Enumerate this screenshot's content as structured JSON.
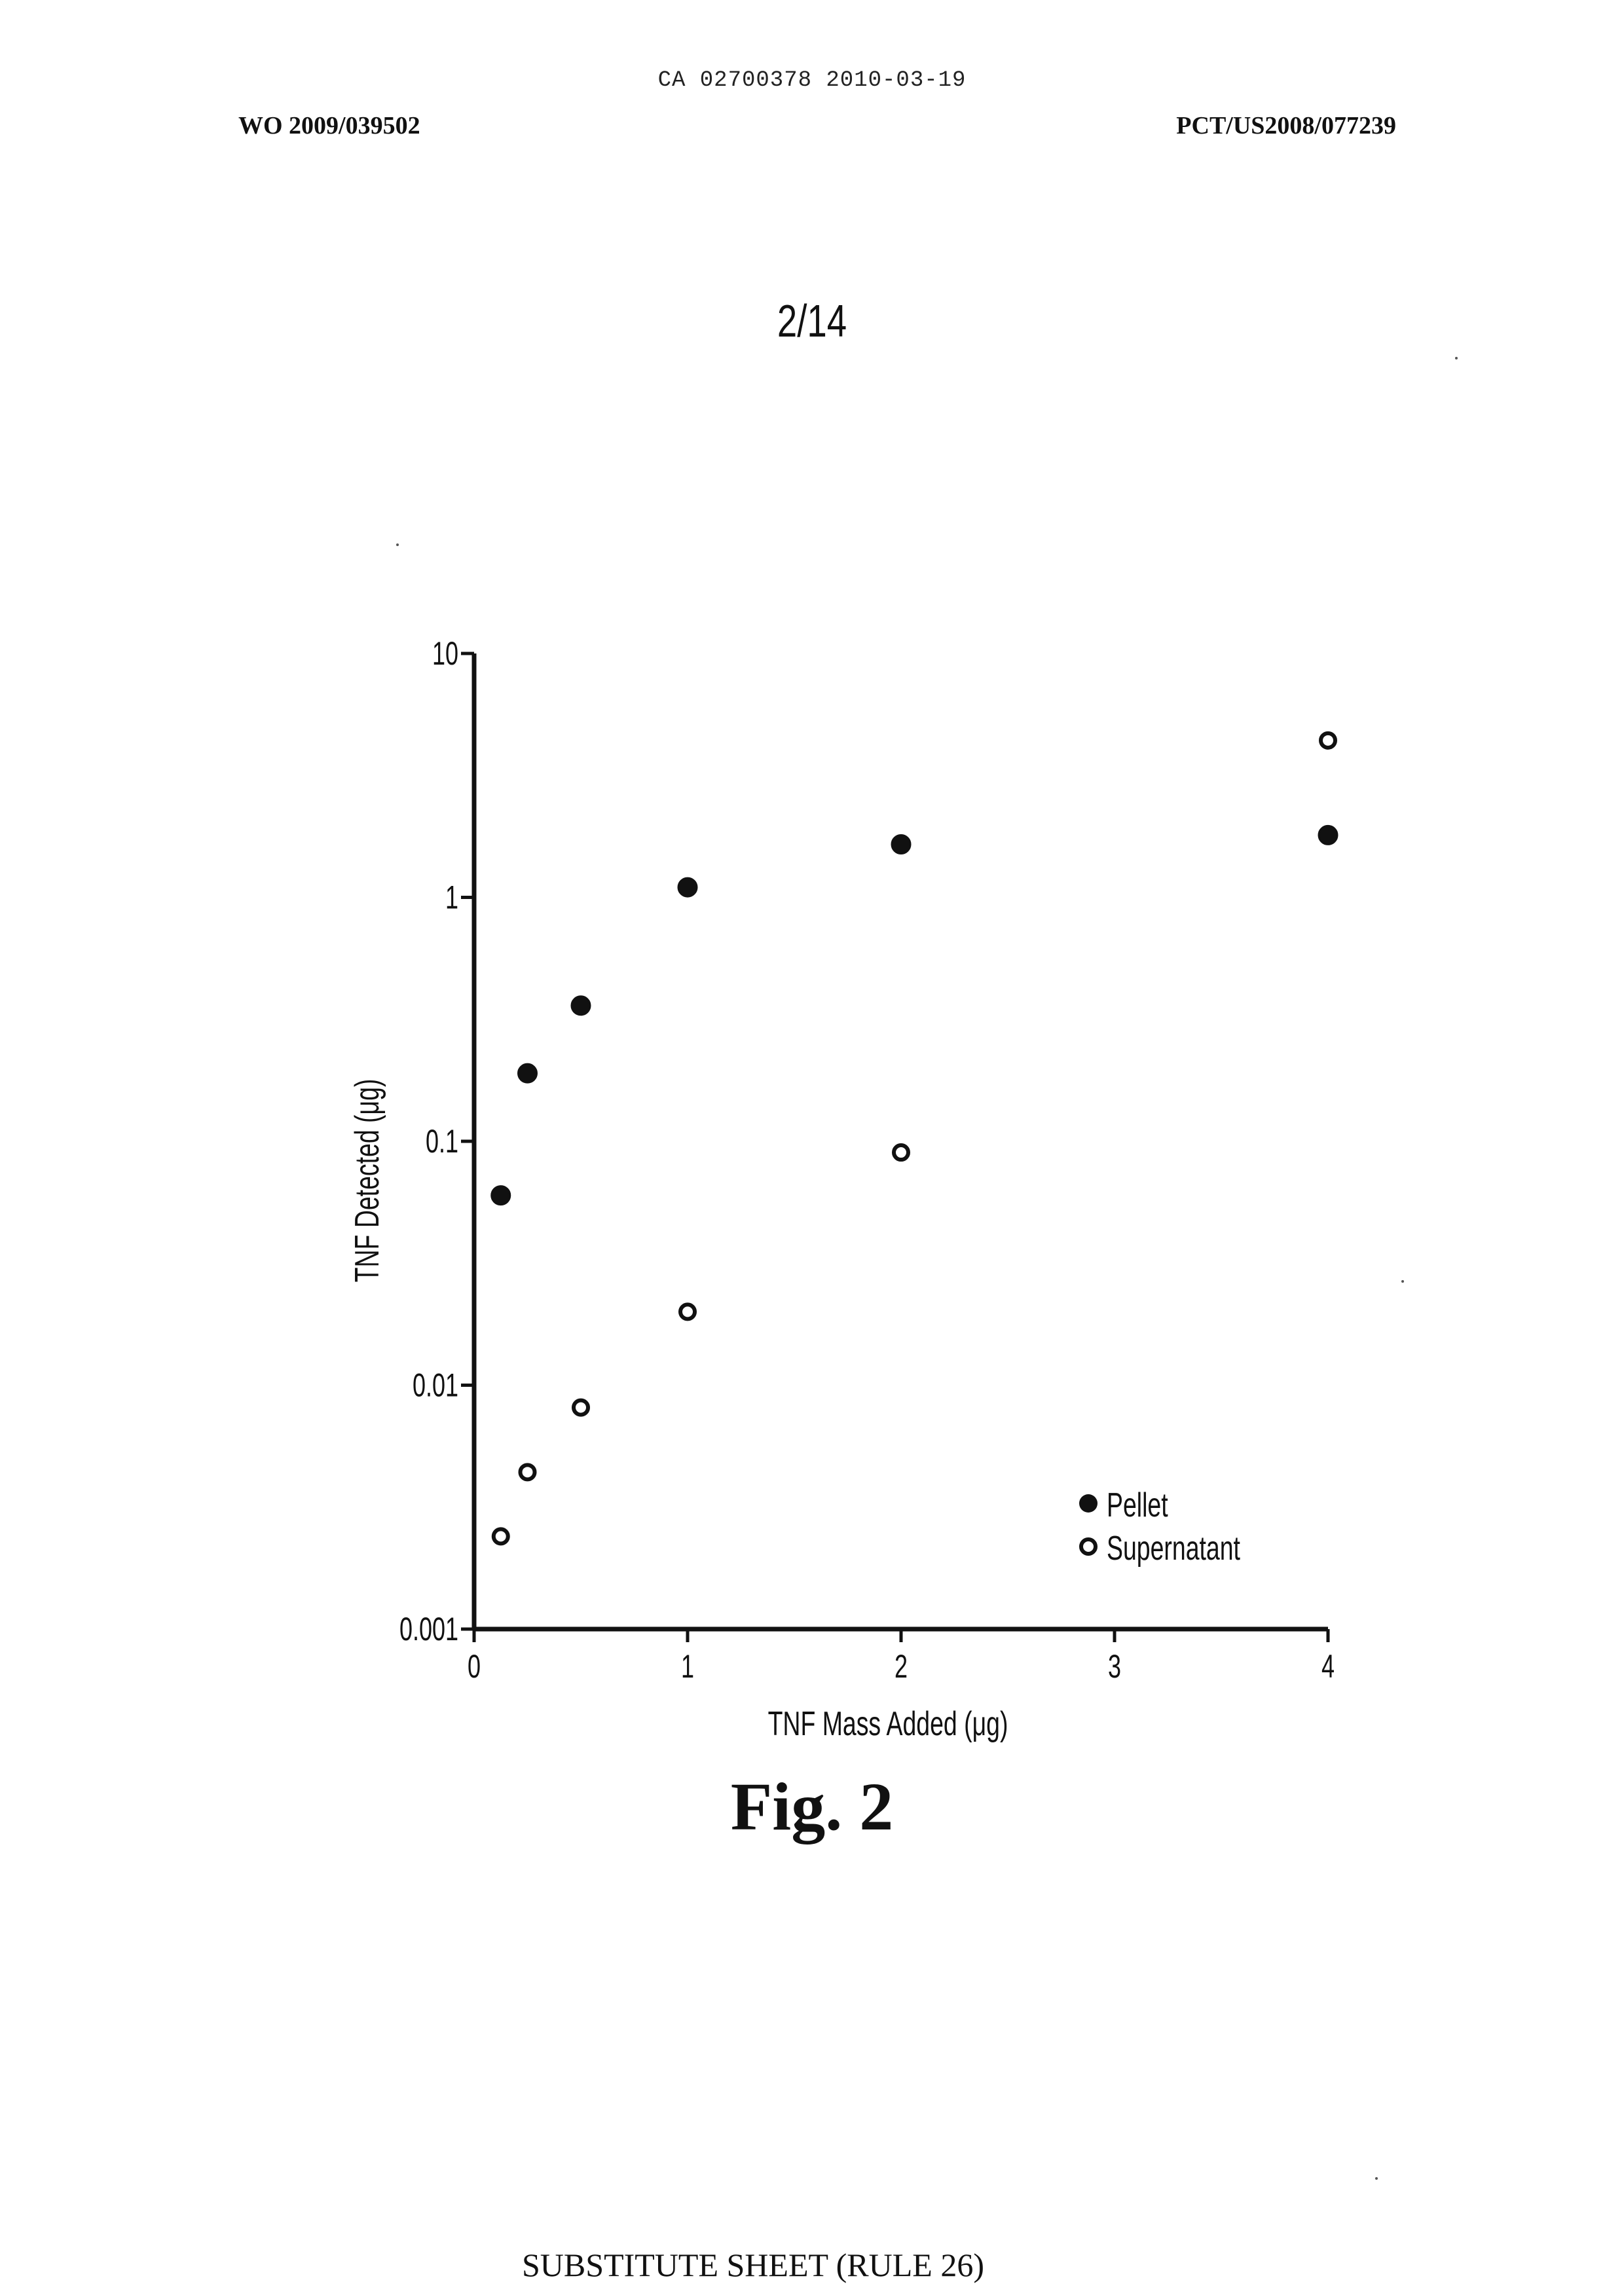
{
  "header": {
    "ca_line": "CA 02700378 2010-03-19",
    "wo_number": "WO 2009/039502",
    "pct_number": "PCT/US2008/077239"
  },
  "sheet_number": "2/14",
  "figure_label": "Fig. 2",
  "footer": "SUBSTITUTE SHEET (RULE 26)",
  "chart_data": {
    "type": "scatter",
    "title": "",
    "xlabel": "TNF Mass Added (μg)",
    "ylabel": "TNF Detected (μg)",
    "xlim": [
      0,
      4
    ],
    "ylim": [
      0.001,
      10
    ],
    "yscale": "log",
    "x_ticks": [
      "0",
      "1",
      "2",
      "3",
      "4"
    ],
    "y_ticks": [
      "0.001",
      "0.01",
      "0.1",
      "1",
      "10"
    ],
    "legend_position": "bottom-right",
    "grid": false,
    "series": [
      {
        "name": "Pellet",
        "marker": "filled-circle",
        "color": "#111111",
        "points": [
          [
            0.125,
            0.06
          ],
          [
            0.25,
            0.19
          ],
          [
            0.5,
            0.36
          ],
          [
            1,
            1.1
          ],
          [
            2,
            1.65
          ],
          [
            4,
            1.8
          ]
        ]
      },
      {
        "name": "Supernatant",
        "marker": "open-circle",
        "color": "#111111",
        "points": [
          [
            0.125,
            0.0024
          ],
          [
            0.25,
            0.0044
          ],
          [
            0.5,
            0.0081
          ],
          [
            1,
            0.02
          ],
          [
            2,
            0.09
          ],
          [
            4,
            4.4
          ]
        ]
      }
    ]
  }
}
